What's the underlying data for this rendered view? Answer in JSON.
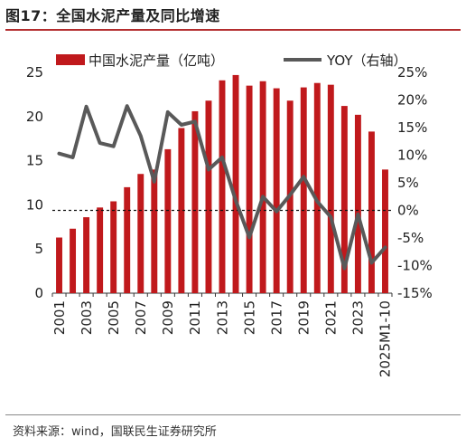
{
  "title": "图17：全国水泥产量及同比增速",
  "source": "资料来源：wind，国联民生证券研究所",
  "colors": {
    "bar": "#c0191c",
    "line": "#595959",
    "title_rule": "#b32d2e"
  },
  "chart_data": {
    "type": "bar+line",
    "categories": [
      "2001",
      "2002",
      "2003",
      "2004",
      "2005",
      "2006",
      "2007",
      "2008",
      "2009",
      "2010",
      "2011",
      "2012",
      "2013",
      "2014",
      "2015",
      "2016",
      "2017",
      "2018",
      "2019",
      "2020",
      "2021",
      "2022",
      "2023",
      "2024",
      "2025M1-10"
    ],
    "x_tick_labels": [
      "2001",
      "2003",
      "2005",
      "2007",
      "2009",
      "2011",
      "2013",
      "2015",
      "2017",
      "2019",
      "2021",
      "2023",
      "2025M1-10"
    ],
    "series": [
      {
        "name": "中国水泥产量（亿吨）",
        "type": "bar",
        "axis": "left",
        "values": [
          6.3,
          7.3,
          8.6,
          9.7,
          10.4,
          12.0,
          13.5,
          14.0,
          16.3,
          18.7,
          20.6,
          21.8,
          24.1,
          24.7,
          23.5,
          24.0,
          23.2,
          21.8,
          23.3,
          23.8,
          23.6,
          21.2,
          20.2,
          18.3,
          14.0
        ]
      },
      {
        "name": "YOY（右轴）",
        "type": "line",
        "axis": "right",
        "values": [
          10.3,
          9.6,
          18.8,
          12.2,
          11.6,
          18.9,
          13.5,
          5.2,
          17.8,
          15.5,
          16.1,
          7.4,
          9.6,
          1.8,
          -4.9,
          2.5,
          -0.2,
          2.8,
          6.1,
          1.6,
          -1.2,
          -10.5,
          -0.7,
          -9.5,
          -6.7
        ]
      }
    ],
    "y_left": {
      "min": 0,
      "max": 25,
      "ticks": [
        0,
        5,
        10,
        15,
        20,
        25
      ]
    },
    "y_right": {
      "min": -15,
      "max": 25,
      "ticks": [
        -15,
        -10,
        -5,
        0,
        5,
        10,
        15,
        20,
        25
      ],
      "tick_labels": [
        "-15%",
        "-10%",
        "-5%",
        "0%",
        "5%",
        "10%",
        "15%",
        "20%",
        "25%"
      ]
    },
    "zero_line_dashed": true,
    "grid": false,
    "legend": "top"
  }
}
